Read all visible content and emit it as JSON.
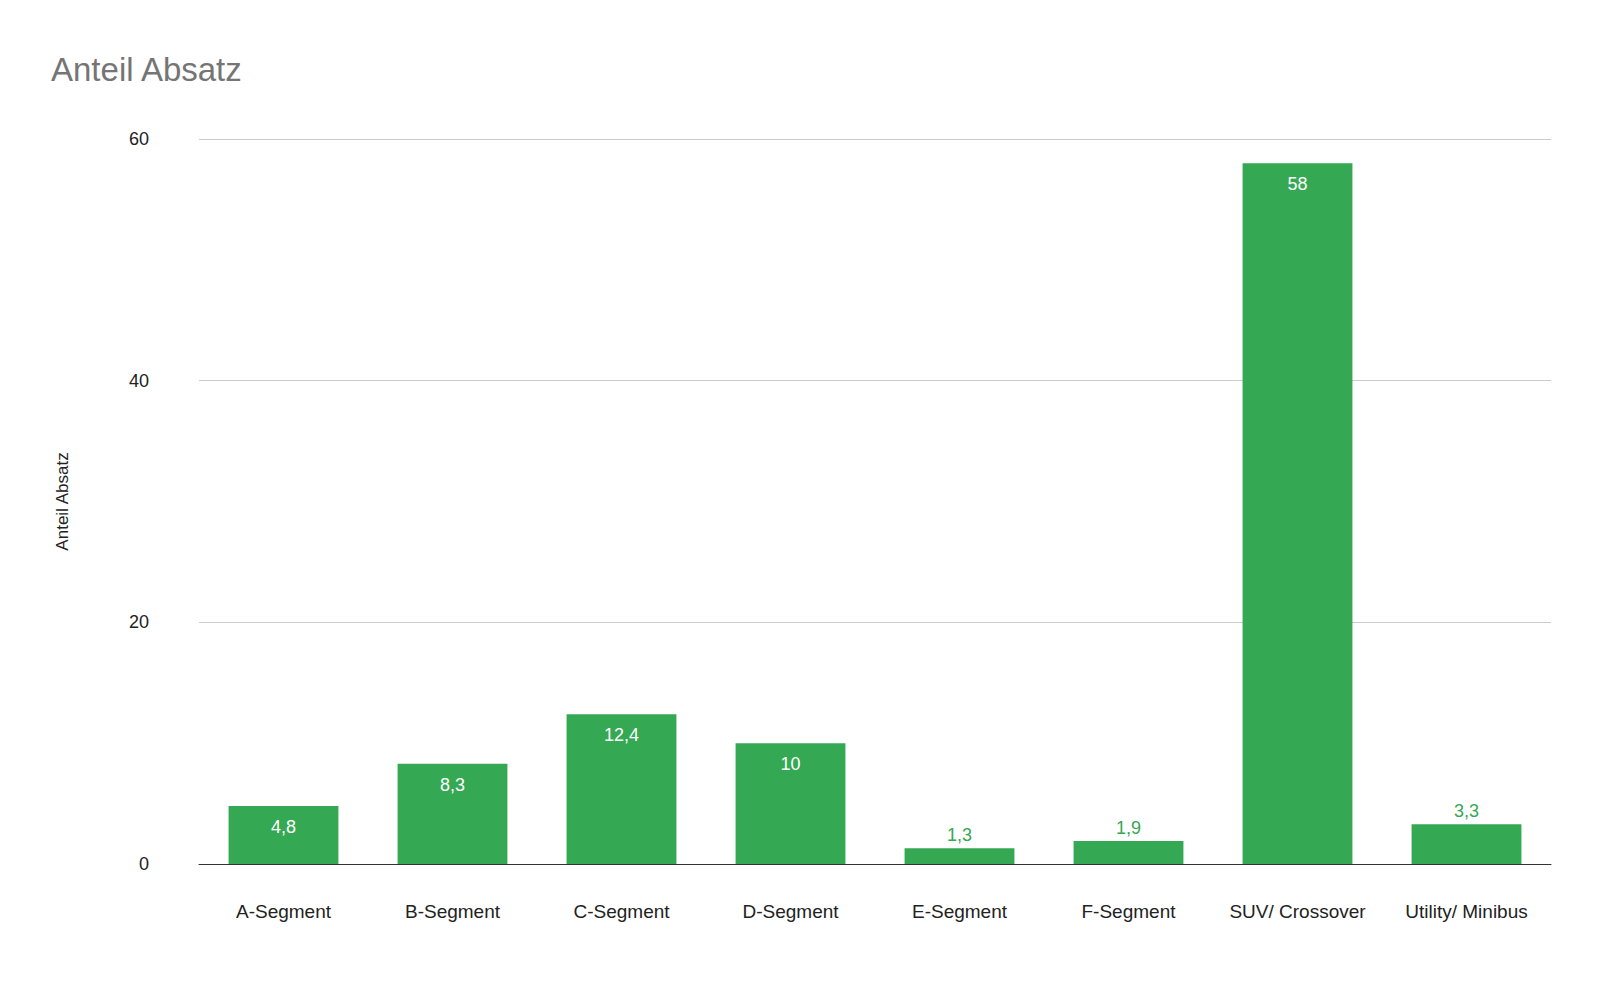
{
  "chart_data": {
    "type": "bar",
    "title": "Anteil Absatz",
    "y_label": "Anteil Absatz",
    "categories": [
      "A-Segment",
      "B-Segment",
      "C-Segment",
      "D-Segment",
      "E-Segment",
      "F-Segment",
      "SUV/ Crossover",
      "Utility/ Minibus"
    ],
    "values": [
      4.8,
      8.3,
      12.4,
      10,
      1.3,
      1.9,
      58,
      3.3
    ],
    "value_labels": [
      "4,8",
      "8,3",
      "12,4",
      "10",
      "1,3",
      "1,9",
      "58",
      "3,3"
    ],
    "color": "#34a853",
    "ylim": [
      0,
      60
    ],
    "yticks": [
      0,
      20,
      40,
      60
    ],
    "grid": true,
    "data_labels": true
  }
}
